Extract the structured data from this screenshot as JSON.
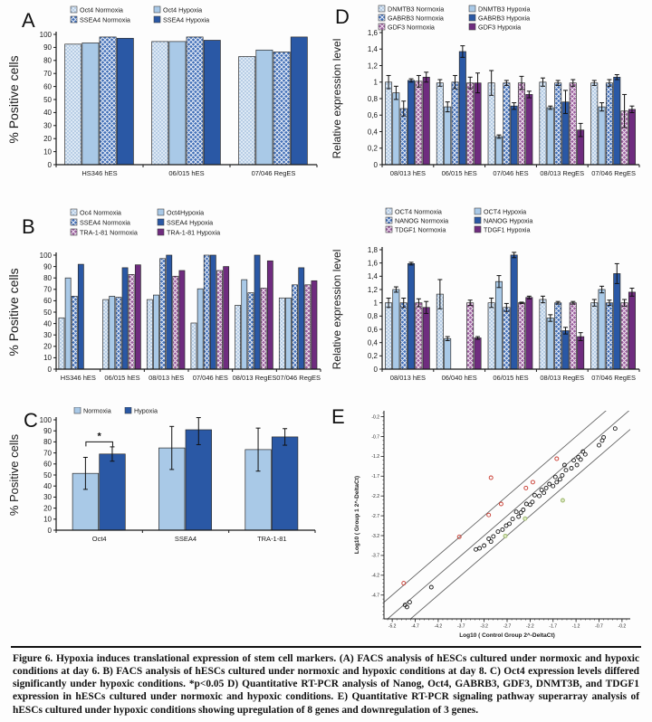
{
  "figure": {
    "caption": "Figure 6. Hypoxia induces translational expression of stem cell markers. (A) FACS analysis of hESCs cultured under normoxic and hypoxic conditions at day 6. B) FACS analysis of hESCs cultured under normoxic and hypoxic conditions at day 8. C) Oct4 expression levels differed significantly under hypoxic conditions. *p<0.05 D) Quantitative RT-PCR analysis of Nanog, Oct4, GABRB3, GDF3, DNMT3B, and TDGF1 expression in hESCs cultured under normoxic and hypoxic conditions. E) Quantitative RT-PCR signaling pathway superarray analysis of hESCs cultured under hypoxic conditions showing upregulation of 8 genes and downregulation of 3 genes."
  },
  "panel_letters": {
    "a": "A",
    "b": "B",
    "c": "C",
    "d": "D",
    "e": "E"
  },
  "styles": {
    "series_styles": {
      "light-dots": {
        "base": "#dde9f5",
        "mark": "#7fa3cc",
        "pattern": "dots"
      },
      "light-solid": {
        "base": "#a9c9e7"
      },
      "blue-hatch": {
        "base": "#3f6db6",
        "mark": "#e8eef8",
        "pattern": "crosshatch"
      },
      "dark-blue": {
        "base": "#2a58a5"
      },
      "purple-hatch": {
        "base": "#9a5d9d",
        "mark": "#f0e4f0",
        "pattern": "crosshatch"
      },
      "dark-purple": {
        "base": "#6f2c7f"
      }
    },
    "scatter_colors": {
      "unchanged": "#1a1a1a",
      "upregulated": "#c8382d",
      "downregulated": "#9ab569",
      "down_fill": "#dce8c2",
      "line": "#666666"
    },
    "axis_color": "#1a1a1a"
  },
  "chart_data": {
    "A": {
      "type": "bar",
      "ylabel": "% Positive cells",
      "ylim": [
        0,
        100
      ],
      "ytick_step": 10,
      "categories": [
        "HS346 hES",
        "06/015 hES",
        "07/046 RegES"
      ],
      "series": [
        {
          "name": "Oct4 Normoxia",
          "style": "light-dots",
          "values": [
            92.5,
            94.5,
            83
          ]
        },
        {
          "name": "Oct4 Hypoxia",
          "style": "light-solid",
          "values": [
            93.5,
            94.5,
            88
          ]
        },
        {
          "name": "SSEA4 Normoxia",
          "style": "blue-hatch",
          "values": [
            98,
            98,
            86.5
          ]
        },
        {
          "name": "SSEA4 Hypoxia",
          "style": "dark-blue",
          "values": [
            97,
            95.5,
            98
          ]
        }
      ]
    },
    "B": {
      "type": "bar",
      "ylabel": "% Positive cells",
      "ylim": [
        0,
        100
      ],
      "ytick_step": 10,
      "categories": [
        "HS346 hES",
        "06/015 hES",
        "08/013 hES",
        "07/046 hES",
        "08/013 RegES",
        "07/046 RegES"
      ],
      "series": [
        {
          "name": "Oc4 Normoxia",
          "style": "light-dots",
          "values": [
            45,
            61,
            61,
            40.5,
            56,
            62.5
          ]
        },
        {
          "name": "Oct4Hypoxia",
          "style": "light-solid",
          "values": [
            80,
            64,
            65,
            70.5,
            78.5,
            62.5
          ]
        },
        {
          "name": "SSEA4 Normoxia",
          "style": "blue-hatch",
          "values": [
            64,
            63,
            97,
            100,
            67,
            74
          ]
        },
        {
          "name": "SSEA4 Hypoxia",
          "style": "dark-blue",
          "values": [
            92,
            89,
            100,
            100,
            100,
            89
          ]
        },
        {
          "name": "TRA-1-81 Normoxia",
          "style": "purple-hatch",
          "values": [
            0,
            83,
            81.5,
            86.5,
            71,
            74
          ]
        },
        {
          "name": "TRA-1-81 Hypoxia",
          "style": "dark-purple",
          "values": [
            0,
            91.5,
            86.5,
            90,
            95,
            77.5
          ]
        }
      ]
    },
    "C": {
      "type": "bar",
      "ylabel": "% Positive cells",
      "ylim": [
        0,
        100
      ],
      "ytick_step": 10,
      "categories": [
        "Oct4",
        "SSEA4",
        "TRA-1-81"
      ],
      "series": [
        {
          "name": "Normoxia",
          "style": "light-solid",
          "values": [
            51.5,
            74.5,
            73
          ],
          "errors": [
            14.5,
            19.5,
            19.5
          ]
        },
        {
          "name": "Hypoxia",
          "style": "dark-blue",
          "values": [
            69,
            91,
            84.5
          ],
          "errors": [
            6.5,
            13.5,
            7.5
          ]
        }
      ],
      "significance": {
        "category_index": 0,
        "label": "*",
        "height": 80
      }
    },
    "D1": {
      "type": "bar",
      "ylabel": "Relative expression level",
      "ylim": [
        0,
        1.6
      ],
      "ytick_step": 0.2,
      "decimal_comma": true,
      "categories": [
        "08/013 hES",
        "06/015 hES",
        "07/046 hES",
        "08/013 RegES",
        "07/046 RegES"
      ],
      "series": [
        {
          "name": "DNMTB3 Normoxia",
          "style": "light-dots",
          "values": [
            1.0,
            0.99,
            0.99,
            1.0,
            0.99
          ],
          "errors": [
            0.08,
            0.04,
            0.15,
            0.05,
            0.03
          ]
        },
        {
          "name": "DNMTB3 Hypoxia",
          "style": "light-solid",
          "values": [
            0.87,
            0.7,
            0.34,
            0.69,
            0.7
          ],
          "errors": [
            0.08,
            0.06,
            0.02,
            0.02,
            0.05
          ]
        },
        {
          "name": "GABRB3 Normoxia",
          "style": "blue-hatch",
          "values": [
            0.68,
            1.0,
            0.99,
            0.99,
            0.99
          ],
          "errors": [
            0.09,
            0.08,
            0.03,
            0.03,
            0.04
          ]
        },
        {
          "name": "GABRB3 Hypoxia",
          "style": "dark-blue",
          "values": [
            1.02,
            1.37,
            0.71,
            0.76,
            1.06
          ],
          "errors": [
            0.02,
            0.07,
            0.04,
            0.14,
            0.03
          ]
        },
        {
          "name": "GDF3 Normoxia",
          "style": "purple-hatch",
          "values": [
            1.01,
            0.99,
            0.99,
            0.99,
            0.65
          ],
          "errors": [
            0.07,
            0.07,
            0.08,
            0.04,
            0.2
          ]
        },
        {
          "name": "GDF3 Hypoxia",
          "style": "dark-purple",
          "values": [
            1.06,
            0.99,
            0.85,
            0.42,
            0.67
          ],
          "errors": [
            0.06,
            0.12,
            0.04,
            0.08,
            0.04
          ]
        }
      ]
    },
    "D2": {
      "type": "bar",
      "ylabel": "Relative expression level",
      "ylim": [
        0,
        1.8
      ],
      "ytick_step": 0.2,
      "decimal_comma": true,
      "categories": [
        "08/013 hES",
        "06/040 hES",
        "06/015 hES",
        "08/013 RegES",
        "07/046 RegES"
      ],
      "series": [
        {
          "name": "OCT4 Normoxia",
          "style": "light-dots",
          "values": [
            1.0,
            1.13,
            1.0,
            1.05,
            1.0
          ],
          "errors": [
            0.07,
            0.22,
            0.07,
            0.05,
            0.05
          ]
        },
        {
          "name": "OCT4 Hypoxia",
          "style": "light-solid",
          "values": [
            1.2,
            0.46,
            1.32,
            0.77,
            1.2
          ],
          "errors": [
            0.04,
            0.03,
            0.09,
            0.05,
            0.05
          ]
        },
        {
          "name": "NANOG Normoxia",
          "style": "blue-hatch",
          "values": [
            1.0,
            0,
            0.93,
            1.0,
            1.0
          ],
          "errors": [
            0.07,
            0,
            0.06,
            0.02,
            0.04
          ]
        },
        {
          "name": "NANOG Hypoxia",
          "style": "dark-blue",
          "values": [
            1.59,
            0,
            1.72,
            0.58,
            1.44
          ],
          "errors": [
            0.02,
            0,
            0.04,
            0.05,
            0.15
          ]
        },
        {
          "name": "TDGF1 Normoxia",
          "style": "purple-hatch",
          "values": [
            1.0,
            1.0,
            1.0,
            1.0,
            1.0
          ],
          "errors": [
            0.06,
            0.04,
            0.01,
            0.02,
            0.05
          ]
        },
        {
          "name": "TDGF1 Hypoxia",
          "style": "dark-purple",
          "values": [
            0.93,
            0.47,
            1.08,
            0.49,
            1.16
          ],
          "errors": [
            0.09,
            0.02,
            0.02,
            0.06,
            0.06
          ]
        }
      ]
    },
    "E": {
      "type": "scatter",
      "xlabel": "Log10 ( Control Group 2^-DeltaCt)",
      "ylabel": "Log10 ( Group 1  2^-DeltaCt)",
      "xticks": [
        -5.2,
        -4.7,
        -4.2,
        -3.7,
        -3.2,
        -2.7,
        -2.2,
        -1.7,
        -1.2,
        -0.7,
        -0.2
      ],
      "yticks": [
        -0.2,
        -0.7,
        -1.2,
        -1.7,
        -2.2,
        -2.7,
        -3.2,
        -3.7,
        -4.2,
        -4.7
      ],
      "xlim": [
        -5.38,
        -0.02
      ],
      "ylim": [
        -5.3,
        -0.05
      ],
      "line_offsets": [
        0,
        0.5,
        -0.5
      ],
      "points": {
        "unchanged": [
          [
            -0.35,
            -0.5
          ],
          [
            -0.6,
            -0.72
          ],
          [
            -0.63,
            -0.8
          ],
          [
            -0.7,
            -0.92
          ],
          [
            -1.0,
            -1.15
          ],
          [
            -1.05,
            -1.08
          ],
          [
            -1.1,
            -1.28
          ],
          [
            -1.15,
            -1.22
          ],
          [
            -1.18,
            -1.42
          ],
          [
            -1.25,
            -1.3
          ],
          [
            -1.3,
            -1.5
          ],
          [
            -1.42,
            -1.55
          ],
          [
            -1.45,
            -1.42
          ],
          [
            -1.5,
            -1.68
          ],
          [
            -1.55,
            -1.78
          ],
          [
            -1.62,
            -1.85
          ],
          [
            -1.65,
            -1.72
          ],
          [
            -1.7,
            -1.95
          ],
          [
            -1.78,
            -1.9
          ],
          [
            -1.85,
            -2.0
          ],
          [
            -1.9,
            -2.12
          ],
          [
            -1.95,
            -2.05
          ],
          [
            -2.0,
            -2.2
          ],
          [
            -2.1,
            -2.18
          ],
          [
            -2.15,
            -2.35
          ],
          [
            -2.2,
            -2.42
          ],
          [
            -2.28,
            -2.4
          ],
          [
            -2.35,
            -2.55
          ],
          [
            -2.4,
            -2.62
          ],
          [
            -2.45,
            -2.72
          ],
          [
            -2.5,
            -2.6
          ],
          [
            -2.58,
            -2.78
          ],
          [
            -2.65,
            -2.9
          ],
          [
            -2.72,
            -2.95
          ],
          [
            -2.8,
            -3.05
          ],
          [
            -2.9,
            -3.1
          ],
          [
            -3.0,
            -3.22
          ],
          [
            -3.05,
            -3.35
          ],
          [
            -3.1,
            -3.28
          ],
          [
            -3.2,
            -3.45
          ],
          [
            -3.3,
            -3.52
          ],
          [
            -3.38,
            -3.55
          ],
          [
            -4.35,
            -4.5
          ],
          [
            -4.82,
            -4.88
          ],
          [
            -4.88,
            -5.0
          ],
          [
            -4.92,
            -4.95
          ]
        ],
        "upregulated": [
          [
            -1.62,
            -1.26
          ],
          [
            -3.05,
            -1.74
          ],
          [
            -2.14,
            -1.85
          ],
          [
            -2.29,
            -2.0
          ],
          [
            -2.83,
            -2.4
          ],
          [
            -3.1,
            -2.68
          ],
          [
            -3.74,
            -3.23
          ],
          [
            -4.95,
            -4.4
          ]
        ],
        "downregulated": [
          [
            -1.49,
            -2.31
          ],
          [
            -2.31,
            -2.77
          ],
          [
            -2.74,
            -3.21
          ]
        ]
      }
    }
  }
}
